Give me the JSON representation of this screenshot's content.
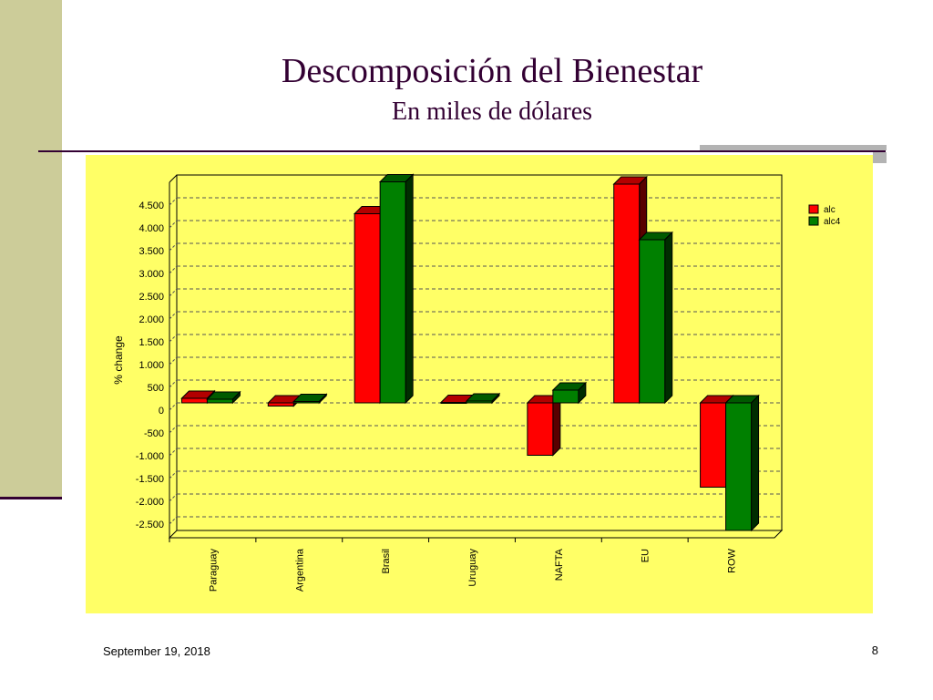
{
  "slide": {
    "title": "Descomposición del Bienestar",
    "subtitle": "En miles de dólares",
    "footer_date": "September 19, 2018",
    "page_number": "8"
  },
  "colors": {
    "accent": "#330033",
    "left_bar": "#cccc99",
    "panel": "#ffff66",
    "series": [
      "#ff0000",
      "#008000"
    ]
  },
  "chart_data": {
    "type": "bar",
    "title": "",
    "xlabel": "",
    "ylabel": "% change",
    "categories": [
      "Paraguay",
      "Argentina",
      "Brasil",
      "Uruguay",
      "NAFTA",
      "EU",
      "ROW"
    ],
    "series": [
      {
        "name": "alc",
        "values": [
          100,
          -70,
          4150,
          10,
          -1150,
          4800,
          -1850
        ]
      },
      {
        "name": "alc4",
        "values": [
          80,
          30,
          4850,
          40,
          280,
          3580,
          -2800
        ]
      }
    ],
    "yticks": [
      4500,
      4000,
      3500,
      3000,
      2500,
      2000,
      1500,
      1000,
      500,
      0,
      -500,
      -1000,
      -1500,
      -2000,
      -2500
    ],
    "ytick_labels": [
      "4.500",
      "4.000",
      "3.500",
      "3.000",
      "2.500",
      "2.000",
      "1.500",
      "1.000",
      "500",
      "0",
      "-500",
      "-1.000",
      "-1.500",
      "-2.000",
      "-2.500"
    ],
    "ylim": [
      -2800,
      5000
    ],
    "grid": true,
    "legend": "top-right",
    "style": "3d"
  }
}
